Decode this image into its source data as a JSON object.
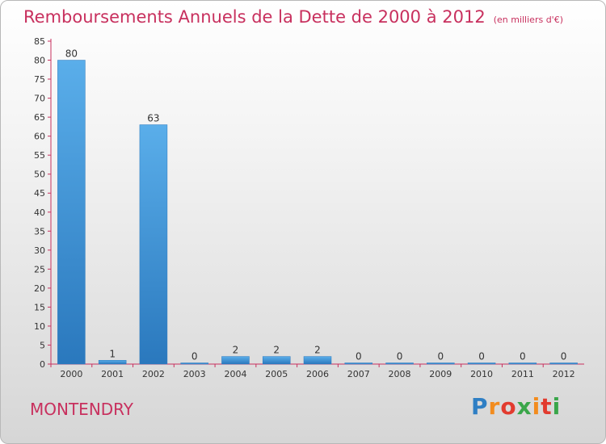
{
  "title": "Remboursements Annuels de la Dette de 2000 à 2012",
  "unit": "(en milliers d'€)",
  "commune": "MONTENDRY",
  "logo": {
    "letters": [
      "P",
      "r",
      "o",
      "x",
      "i",
      "t",
      "i"
    ],
    "colors": [
      "#2f7fc4",
      "#f28c1e",
      "#e23b2f",
      "#3aa64a",
      "#f28c1e",
      "#e23b2f",
      "#3aa64a"
    ]
  },
  "chart_data": {
    "type": "bar",
    "title": "Remboursements Annuels de la Dette de 2000 à 2012",
    "xlabel": "",
    "ylabel": "",
    "ylim": [
      0,
      85
    ],
    "yticks": [
      0,
      5,
      10,
      15,
      20,
      25,
      30,
      35,
      40,
      45,
      50,
      55,
      60,
      65,
      70,
      75,
      80,
      85
    ],
    "grid": false,
    "categories": [
      "2000",
      "2001",
      "2002",
      "2003",
      "2004",
      "2005",
      "2006",
      "2007",
      "2008",
      "2009",
      "2010",
      "2011",
      "2012"
    ],
    "values": [
      80,
      1,
      63,
      0,
      2,
      2,
      2,
      0,
      0,
      0,
      0,
      0,
      0
    ],
    "data_labels": [
      "80",
      "1",
      "63",
      "0",
      "2",
      "2",
      "2",
      "0",
      "0",
      "0",
      "0",
      "0",
      "0"
    ],
    "bar_color": "#3b8fd6",
    "axis_color": "#c8305e"
  }
}
